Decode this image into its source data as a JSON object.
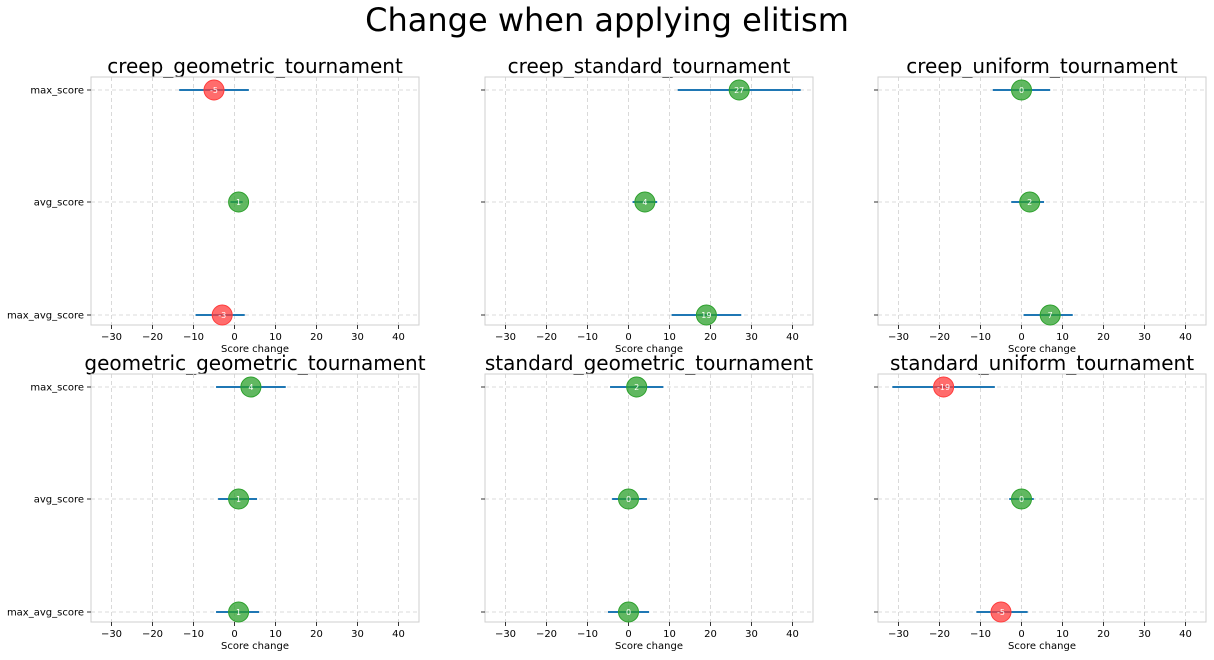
{
  "suptitle": "Change when applying elitism",
  "chart_data": [
    {
      "type": "scatter",
      "title": "creep_geometric_tournament",
      "xlabel": "Score change",
      "ylabel": "",
      "xlim": [
        -35,
        45
      ],
      "xticks": [
        -30,
        -20,
        -10,
        0,
        10,
        20,
        30,
        40
      ],
      "categories": [
        "max_score",
        "avg_score",
        "max_avg_score"
      ],
      "points": [
        {
          "category": "max_score",
          "value": -5,
          "label": "-5",
          "ci": [
            -13.5,
            3.5
          ]
        },
        {
          "category": "avg_score",
          "value": 1,
          "label": "1",
          "ci": [
            -1,
            2
          ]
        },
        {
          "category": "max_avg_score",
          "value": -3,
          "label": "-3",
          "ci": [
            -9.5,
            2.5
          ]
        }
      ],
      "grid": true
    },
    {
      "type": "scatter",
      "title": "creep_standard_tournament",
      "xlabel": "Score change",
      "ylabel": "",
      "xlim": [
        -35,
        45
      ],
      "xticks": [
        -30,
        -20,
        -10,
        0,
        10,
        20,
        30,
        40
      ],
      "categories": [
        "max_score",
        "avg_score",
        "max_avg_score"
      ],
      "points": [
        {
          "category": "max_score",
          "value": 27,
          "label": "27",
          "ci": [
            12,
            42
          ]
        },
        {
          "category": "avg_score",
          "value": 4,
          "label": "4",
          "ci": [
            1,
            7
          ]
        },
        {
          "category": "max_avg_score",
          "value": 19,
          "label": "19",
          "ci": [
            10.5,
            27.5
          ]
        }
      ],
      "grid": true
    },
    {
      "type": "scatter",
      "title": "creep_uniform_tournament",
      "xlabel": "Score change",
      "ylabel": "",
      "xlim": [
        -35,
        45
      ],
      "xticks": [
        -30,
        -20,
        -10,
        0,
        10,
        20,
        30,
        40
      ],
      "categories": [
        "max_score",
        "avg_score",
        "max_avg_score"
      ],
      "points": [
        {
          "category": "max_score",
          "value": 0,
          "label": "0",
          "ci": [
            -7,
            7
          ]
        },
        {
          "category": "avg_score",
          "value": 2,
          "label": "2",
          "ci": [
            -2.5,
            5.5
          ]
        },
        {
          "category": "max_avg_score",
          "value": 7,
          "label": "7",
          "ci": [
            0.5,
            12.5
          ]
        }
      ],
      "grid": true
    },
    {
      "type": "scatter",
      "title": "geometric_geometric_tournament",
      "xlabel": "Score change",
      "ylabel": "",
      "xlim": [
        -35,
        45
      ],
      "xticks": [
        -30,
        -20,
        -10,
        0,
        10,
        20,
        30,
        40
      ],
      "categories": [
        "max_score",
        "avg_score",
        "max_avg_score"
      ],
      "points": [
        {
          "category": "max_score",
          "value": 4,
          "label": "4",
          "ci": [
            -4.5,
            12.5
          ]
        },
        {
          "category": "avg_score",
          "value": 1,
          "label": "1",
          "ci": [
            -4,
            5.5
          ]
        },
        {
          "category": "max_avg_score",
          "value": 1,
          "label": "1",
          "ci": [
            -4.5,
            6
          ]
        }
      ],
      "grid": true
    },
    {
      "type": "scatter",
      "title": "standard_geometric_tournament",
      "xlabel": "Score change",
      "ylabel": "",
      "xlim": [
        -35,
        45
      ],
      "xticks": [
        -30,
        -20,
        -10,
        0,
        10,
        20,
        30,
        40
      ],
      "categories": [
        "max_score",
        "avg_score",
        "max_avg_score"
      ],
      "points": [
        {
          "category": "max_score",
          "value": 2,
          "label": "2",
          "ci": [
            -4.5,
            8.5
          ]
        },
        {
          "category": "avg_score",
          "value": 0,
          "label": "0",
          "ci": [
            -4,
            4.5
          ]
        },
        {
          "category": "max_avg_score",
          "value": 0,
          "label": "0",
          "ci": [
            -5,
            5
          ]
        }
      ],
      "grid": true
    },
    {
      "type": "scatter",
      "title": "standard_uniform_tournament",
      "xlabel": "Score change",
      "ylabel": "",
      "xlim": [
        -35,
        45
      ],
      "xticks": [
        -30,
        -20,
        -10,
        0,
        10,
        20,
        30,
        40
      ],
      "categories": [
        "max_score",
        "avg_score",
        "max_avg_score"
      ],
      "points": [
        {
          "category": "max_score",
          "value": -19,
          "label": "-19",
          "ci": [
            -31.5,
            -6.5
          ]
        },
        {
          "category": "avg_score",
          "value": 0,
          "label": "0",
          "ci": [
            -3,
            3
          ]
        },
        {
          "category": "max_avg_score",
          "value": -5,
          "label": "-5",
          "ci": [
            -11,
            1.5
          ]
        }
      ],
      "grid": true
    }
  ],
  "colors": {
    "positive": "#2ca02c",
    "negative": "#ff3b3b",
    "errorbar": "#1f77b4",
    "grid": "#d0d0d0",
    "axis": "#cfcfcf"
  }
}
